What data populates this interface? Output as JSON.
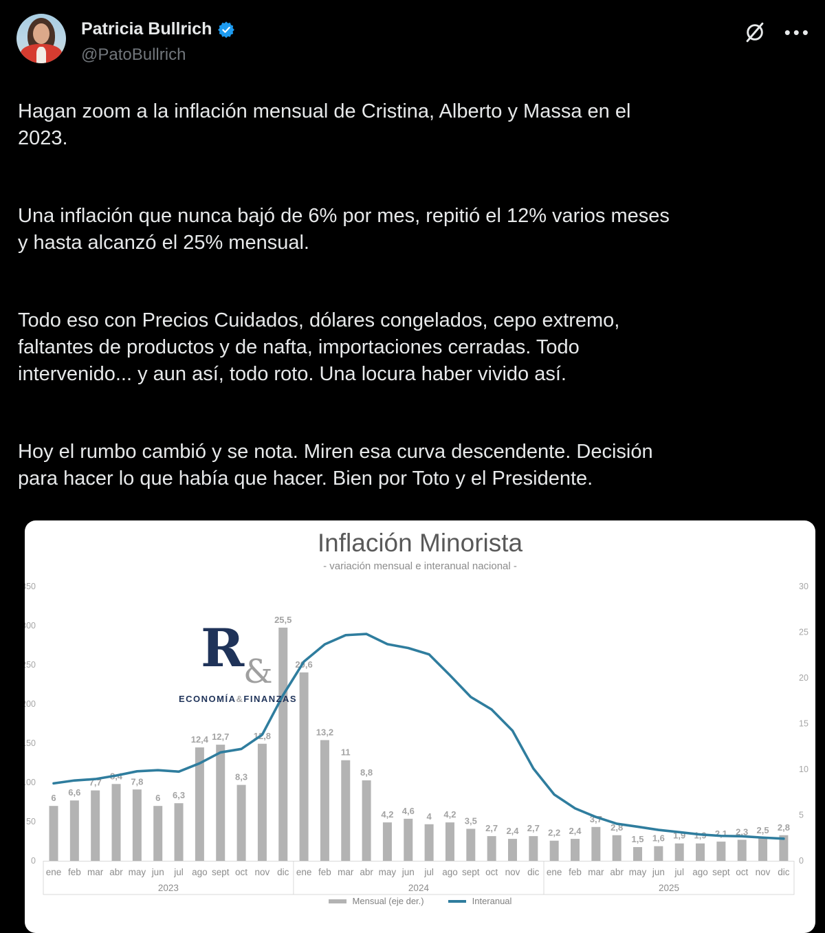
{
  "header": {
    "display_name": "Patricia Bullrich",
    "handle": "@PatoBullrich",
    "verified": true,
    "badge_color": "#1d9bf0"
  },
  "tweet": {
    "paragraphs": [
      [
        "Hagan zoom a la inflación mensual de Cristina, Alberto y Massa en el",
        "2023."
      ],
      [
        "Una inflación que nunca bajó de 6% por mes, repitió el 12% varios meses",
        "y hasta alcanzó el 25% mensual."
      ],
      [
        "Todo eso con Precios Cuidados, dólares congelados, cepo extremo,",
        "faltantes de productos y de nafta, importaciones cerradas. Todo",
        "intervenido... y aun así, todo roto. Una locura haber vivido así."
      ],
      [
        "Hoy el rumbo cambió y se nota. Miren esa curva descendente. Decisión",
        "para hacer lo que había que hacer. Bien por Toto y el Presidente."
      ]
    ]
  },
  "chart_data": {
    "type": "bar+line",
    "title": "Inflación Minorista",
    "subtitle": "- variación mensual e interanual nacional -",
    "watermark": {
      "letter": "R",
      "ampersand": "&",
      "caption_left": "ECONOMÍA",
      "caption_amp": "&",
      "caption_right": "FINANZAS"
    },
    "years": [
      "2023",
      "2024",
      "2025"
    ],
    "month_labels": [
      "ene",
      "feb",
      "mar",
      "abr",
      "may",
      "jun",
      "jul",
      "ago",
      "sept",
      "oct",
      "nov",
      "dic"
    ],
    "series": [
      {
        "name": "Mensual (eje der.)",
        "type": "bar",
        "axis": "right",
        "values": [
          6,
          6.6,
          7.7,
          8.4,
          7.8,
          6,
          6.3,
          12.4,
          12.7,
          8.3,
          12.8,
          25.5,
          20.6,
          13.2,
          11,
          8.8,
          4.2,
          4.6,
          4,
          4.2,
          3.5,
          2.7,
          2.4,
          2.7,
          2.2,
          2.4,
          3.7,
          2.8,
          1.5,
          1.6,
          1.9,
          1.9,
          2.1,
          2.3,
          2.5,
          2.8
        ]
      },
      {
        "name": "Interanual",
        "type": "line",
        "axis": "left",
        "values": [
          98.8,
          102.5,
          104.3,
          108.8,
          114.2,
          115.6,
          113.8,
          124.4,
          138.3,
          142.7,
          160.9,
          211.4,
          254.2,
          276.2,
          287.9,
          289.4,
          276.4,
          271.5,
          263.4,
          236.7,
          209,
          193,
          166,
          117.8,
          84.5,
          66.9,
          55.9,
          47.3,
          43.5,
          39.4,
          36.6,
          33.6,
          31.8,
          31.3,
          29.6,
          28.2
        ]
      }
    ],
    "left_axis": {
      "min": 0,
      "max": 350,
      "step": 50,
      "ticks": [
        0,
        50,
        100,
        150,
        200,
        250,
        300,
        350
      ]
    },
    "right_axis": {
      "min": 0,
      "max": 30,
      "step": 5,
      "ticks": [
        0,
        5,
        10,
        15,
        20,
        25,
        30
      ]
    },
    "grid": false,
    "legend_position": "bottom",
    "colors": {
      "bar": "#b3b3b3",
      "line": "#2f7d9e",
      "value_labels": "#a3a3a3",
      "axis_labels": "#a6a6a6",
      "band_border": "#d9d9d9"
    }
  }
}
